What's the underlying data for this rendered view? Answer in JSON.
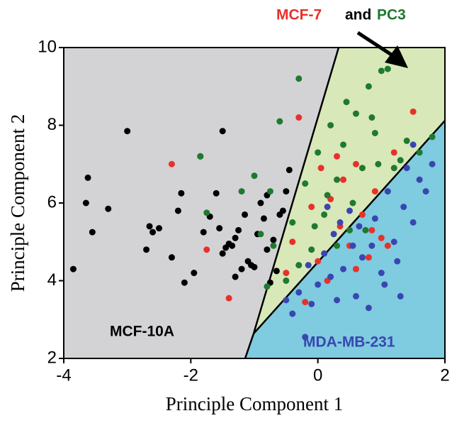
{
  "chart_data": {
    "type": "scatter",
    "xlabel": "Principle Component 1",
    "ylabel": "Principle Component 2",
    "xlim": [
      -4,
      2
    ],
    "ylim": [
      2,
      10
    ],
    "xticks": [
      -4,
      -2,
      0,
      2
    ],
    "yticks": [
      2,
      4,
      6,
      8,
      10
    ],
    "annotations": [
      "and"
    ],
    "series": [
      {
        "name": "MCF-10A",
        "color": "#000000",
        "x": [
          -3.85,
          -3.65,
          -3.62,
          -3.55,
          -3.3,
          -3.0,
          -2.7,
          -2.65,
          -2.6,
          -2.5,
          -2.3,
          -2.2,
          -2.15,
          -2.1,
          -1.95,
          -1.85,
          -1.8,
          -1.7,
          -1.6,
          -1.55,
          -1.5,
          -1.45,
          -1.4,
          -1.35,
          -1.3,
          -1.3,
          -1.2,
          -1.15,
          -1.1,
          -1.05,
          -1.0,
          -0.95,
          -0.9,
          -0.85,
          -0.8,
          -0.75,
          -0.7,
          -0.65,
          -0.6,
          -0.55,
          -0.5,
          -0.45,
          -0.8,
          -1.5,
          -1.25
        ],
        "y": [
          4.3,
          6.0,
          6.65,
          5.25,
          5.85,
          7.85,
          4.8,
          5.4,
          5.25,
          5.35,
          4.6,
          5.8,
          6.25,
          3.95,
          4.2,
          7.2,
          5.25,
          5.65,
          6.25,
          5.35,
          7.85,
          4.85,
          4.95,
          4.9,
          4.1,
          5.1,
          4.3,
          5.7,
          4.5,
          4.4,
          4.35,
          5.2,
          6.0,
          5.6,
          6.2,
          3.95,
          5.05,
          4.25,
          5.7,
          5.8,
          6.3,
          6.85,
          4.8,
          4.7,
          5.3
        ]
      },
      {
        "name": "MCF-7",
        "color": "#e8312a",
        "x": [
          -2.3,
          -1.75,
          -1.4,
          -0.3,
          -0.1,
          0.0,
          0.2,
          0.35,
          0.5,
          0.6,
          0.7,
          0.8,
          0.9,
          1.0,
          1.1,
          1.5,
          0.3,
          -0.2,
          0.15,
          0.4,
          -0.4,
          0.6,
          1.2,
          0.05,
          -0.5,
          0.85
        ],
        "y": [
          7.0,
          4.8,
          3.55,
          8.2,
          5.9,
          4.5,
          6.1,
          5.4,
          4.9,
          7.0,
          5.7,
          4.6,
          6.3,
          5.1,
          4.9,
          8.35,
          7.2,
          3.45,
          4.0,
          6.6,
          5.0,
          4.3,
          7.3,
          6.9,
          4.2,
          5.3
        ]
      },
      {
        "name": "PC3",
        "color": "#1e7a2e",
        "x": [
          -1.85,
          -1.75,
          -1.2,
          -1.0,
          -0.9,
          -0.75,
          -0.6,
          -0.4,
          -0.3,
          -0.2,
          -0.1,
          0.0,
          0.1,
          0.2,
          0.3,
          0.4,
          0.5,
          0.6,
          0.7,
          0.8,
          0.9,
          1.0,
          1.1,
          1.2,
          1.3,
          1.4,
          1.6,
          1.8,
          -0.7,
          -0.5,
          -0.3,
          0.3,
          0.55,
          0.75,
          0.95,
          -0.05,
          0.15,
          0.45,
          0.85,
          -0.8
        ],
        "y": [
          7.2,
          5.75,
          6.3,
          6.7,
          5.2,
          6.3,
          8.1,
          5.5,
          9.2,
          6.5,
          4.8,
          7.3,
          5.7,
          8.0,
          6.6,
          7.5,
          5.3,
          8.3,
          6.9,
          9.0,
          7.8,
          9.4,
          9.45,
          6.9,
          7.1,
          7.6,
          7.3,
          7.7,
          4.9,
          4.0,
          4.4,
          4.9,
          6.0,
          5.3,
          7.0,
          5.4,
          6.2,
          8.6,
          8.2,
          3.85
        ]
      },
      {
        "name": "MDA-MB-231",
        "color": "#3a46b0",
        "x": [
          -0.2,
          -0.1,
          -0.4,
          -0.3,
          0.0,
          0.1,
          0.2,
          0.3,
          0.4,
          0.5,
          0.6,
          0.7,
          0.8,
          0.9,
          1.0,
          1.1,
          1.2,
          1.3,
          1.4,
          1.5,
          1.6,
          1.7,
          1.8,
          1.5,
          0.35,
          0.15,
          -0.15,
          0.55,
          0.85,
          1.05,
          1.25,
          -0.5,
          0.25,
          0.65,
          1.35
        ],
        "y": [
          2.55,
          3.4,
          3.15,
          3.7,
          3.9,
          4.7,
          4.1,
          3.5,
          4.3,
          5.8,
          3.6,
          4.6,
          3.3,
          5.6,
          4.2,
          6.3,
          5.0,
          3.6,
          6.9,
          5.5,
          6.6,
          6.3,
          7.0,
          7.5,
          5.5,
          5.9,
          4.4,
          4.9,
          4.9,
          3.9,
          4.5,
          3.5,
          5.2,
          5.4,
          5.9
        ]
      }
    ]
  }
}
